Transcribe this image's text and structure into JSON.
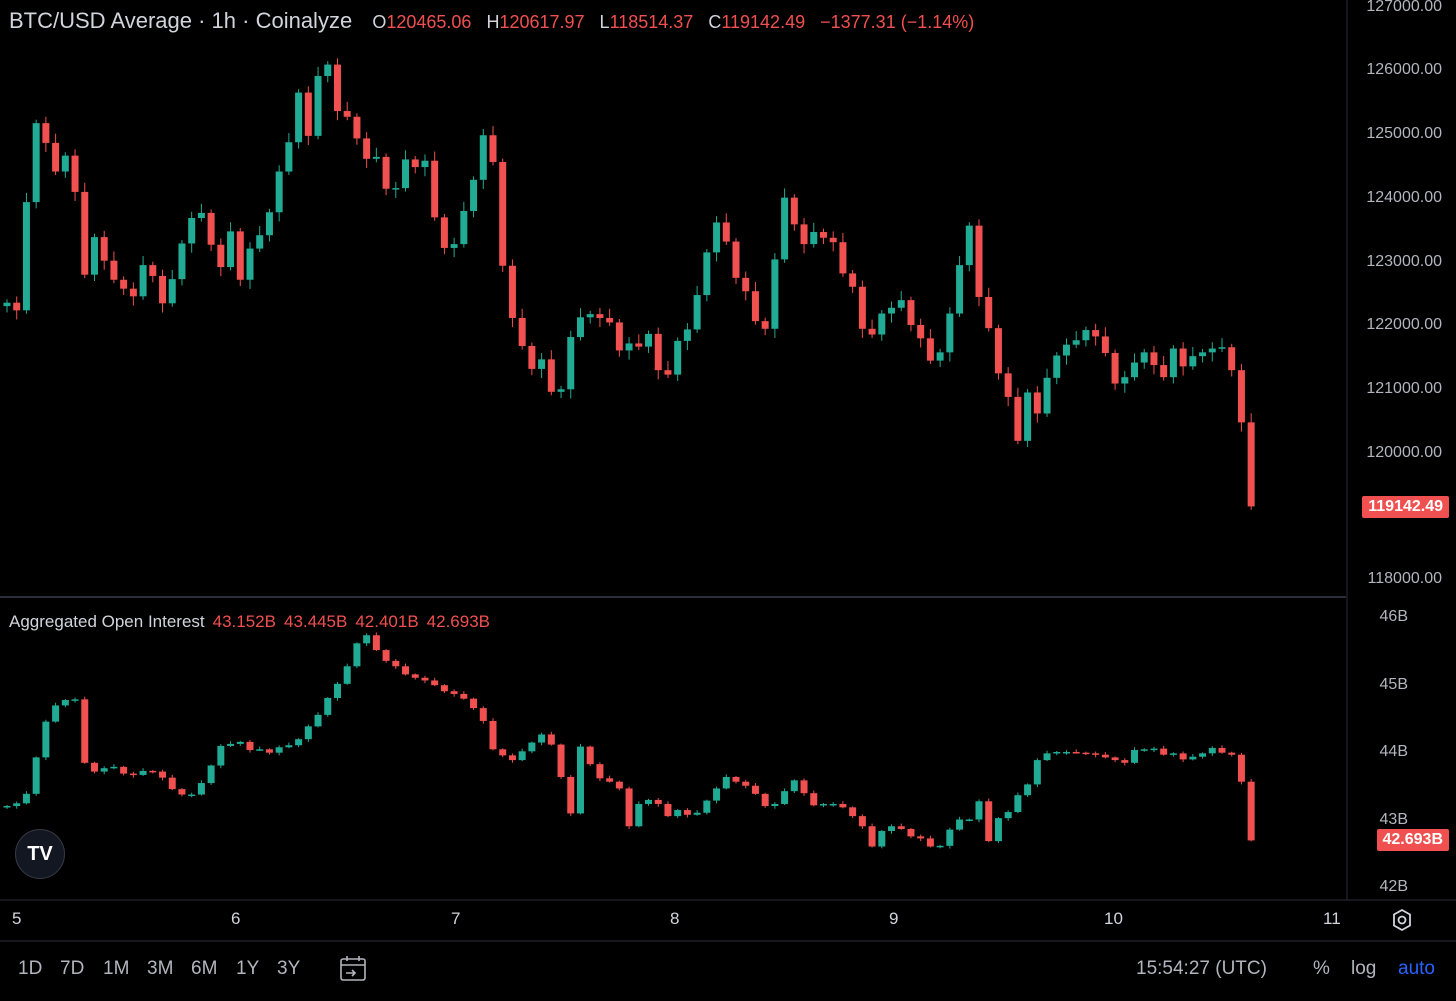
{
  "header": {
    "symbol": "BTC/USD Average · 1h · Coinalyze",
    "open_label": "O",
    "open": "120465.06",
    "high_label": "H",
    "high": "120617.97",
    "low_label": "L",
    "low": "118514.37",
    "close_label": "C",
    "close": "119142.49",
    "change": "−1377.31 (−1.14%)"
  },
  "price_axis": [
    "127000.00",
    "126000.00",
    "125000.00",
    "124000.00",
    "123000.00",
    "122000.00",
    "121000.00",
    "120000.00",
    "118000.00"
  ],
  "last_price_tag": "119142.49",
  "oi": {
    "title": "Aggregated Open Interest",
    "values": [
      "43.152B",
      "43.445B",
      "42.401B",
      "42.693B"
    ],
    "axis": [
      "46B",
      "45B",
      "44B",
      "43B",
      "42B"
    ],
    "last_tag": "42.693B"
  },
  "time_axis": [
    "5",
    "6",
    "7",
    "8",
    "9",
    "10",
    "11"
  ],
  "ranges": [
    "1D",
    "7D",
    "1M",
    "3M",
    "6M",
    "1Y",
    "3Y"
  ],
  "clock": "15:54:27 (UTC)",
  "scale_buttons": {
    "percent": "%",
    "log": "log",
    "auto": "auto"
  },
  "colors": {
    "up": "#22ab94",
    "down": "#f0504f",
    "bg": "#000000",
    "auto_active": "#2962ff"
  },
  "logo_text": "TV",
  "icons": {
    "settings": "gear-icon",
    "date_range": "calendar-goto-icon"
  },
  "chart_data": {
    "type": "candlestick",
    "price_closes": [
      122340,
      122220,
      123920,
      125160,
      124850,
      124400,
      124650,
      124080,
      122780,
      123370,
      123000,
      122700,
      122560,
      122440,
      122930,
      122760,
      122330,
      122710,
      123270,
      123670,
      123750,
      123250,
      122900,
      123460,
      122700,
      123190,
      123400,
      123760,
      124400,
      124860,
      125640,
      124960,
      125900,
      126080,
      125350,
      125260,
      124920,
      124600,
      124630,
      124130,
      124140,
      124590,
      124470,
      124570,
      123680,
      123200,
      123260,
      123780,
      124270,
      124970,
      124550,
      122920,
      122100,
      121660,
      121300,
      121450,
      120940,
      120980,
      121800,
      122110,
      122160,
      122100,
      122030,
      121590,
      121700,
      121650,
      121850,
      121280,
      121210,
      121740,
      121920,
      122460,
      123130,
      123600,
      123300,
      122730,
      122520,
      122050,
      121930,
      123020,
      123990,
      123570,
      123260,
      123450,
      123360,
      123290,
      122800,
      122590,
      121930,
      121840,
      122170,
      122260,
      122380,
      121990,
      121780,
      121430,
      121560,
      122170,
      122930,
      123550,
      122430,
      121940,
      121230,
      120860,
      120170,
      120930,
      120600,
      121160,
      121510,
      121680,
      121750,
      121910,
      121810,
      121550,
      121070,
      121170,
      121400,
      121560,
      121360,
      121170,
      121620,
      121340,
      121500,
      121560,
      121620,
      121640,
      121280,
      120460,
      119140
    ],
    "oi_closes": [
      43.2,
      43.24,
      43.38,
      43.92,
      44.45,
      44.69,
      44.77,
      44.78,
      43.84,
      43.71,
      43.76,
      43.78,
      43.68,
      43.66,
      43.72,
      43.71,
      43.62,
      43.45,
      43.37,
      43.37,
      43.54,
      43.8,
      44.09,
      44.12,
      44.15,
      44.03,
      44.04,
      43.99,
      44.07,
      44.1,
      44.19,
      44.38,
      44.55,
      44.8,
      45.01,
      45.27,
      45.61,
      45.73,
      45.51,
      45.35,
      45.27,
      45.15,
      45.1,
      45.06,
      44.99,
      44.9,
      44.86,
      44.79,
      44.65,
      44.46,
      44.04,
      43.95,
      43.88,
      44.01,
      44.14,
      44.26,
      44.11,
      43.63,
      43.09,
      44.08,
      43.82,
      43.61,
      43.56,
      43.46,
      42.9,
      43.23,
      43.29,
      43.23,
      43.05,
      43.14,
      43.07,
      43.1,
      43.28,
      43.46,
      43.63,
      43.56,
      43.5,
      43.38,
      43.2,
      43.23,
      43.42,
      43.58,
      43.39,
      43.21,
      43.23,
      43.23,
      43.18,
      43.05,
      42.9,
      42.6,
      42.83,
      42.9,
      42.86,
      42.75,
      42.72,
      42.6,
      42.61,
      42.85,
      43.0,
      43.0,
      43.27,
      42.68,
      43.02,
      43.11,
      43.36,
      43.52,
      43.88,
      43.98,
      44.0,
      44.0,
      43.99,
      43.98,
      43.96,
      43.92,
      43.88,
      43.84,
      44.03,
      44.04,
      44.05,
      43.96,
      43.98,
      43.89,
      43.93,
      43.98,
      44.06,
      43.99,
      43.96,
      43.56,
      42.69
    ],
    "price_range": [
      117700,
      127000
    ],
    "oi_range": [
      41.9,
      46.0
    ]
  }
}
